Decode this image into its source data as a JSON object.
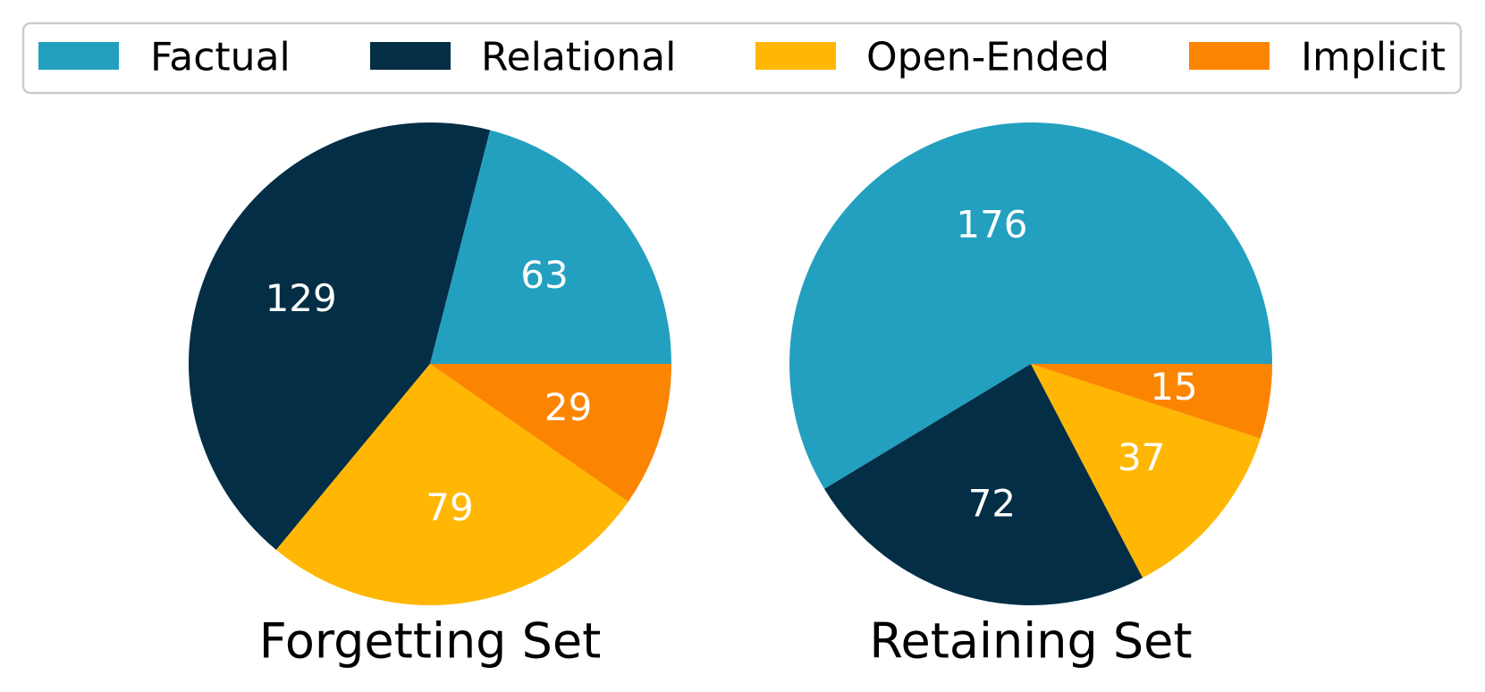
{
  "legend": {
    "placement": "top",
    "entries": [
      {
        "name": "Factual",
        "color": "#23A0BF"
      },
      {
        "name": "Relational",
        "color": "#032E46"
      },
      {
        "name": "Open-Ended",
        "color": "#FFB703"
      },
      {
        "name": "Implicit",
        "color": "#FB8500"
      }
    ]
  },
  "chart_data": [
    {
      "type": "pie",
      "title": "Forgetting Set",
      "categories": [
        "Factual",
        "Relational",
        "Open-Ended",
        "Implicit"
      ],
      "values": [
        63,
        129,
        79,
        29
      ],
      "colors": [
        "#23A0BF",
        "#032E46",
        "#FFB703",
        "#FB8500"
      ],
      "label_color": "#ffffff"
    },
    {
      "type": "pie",
      "title": "Retaining Set",
      "categories": [
        "Factual",
        "Relational",
        "Open-Ended",
        "Implicit"
      ],
      "values": [
        176,
        72,
        37,
        15
      ],
      "colors": [
        "#23A0BF",
        "#032E46",
        "#FFB703",
        "#FB8500"
      ],
      "label_color": "#ffffff"
    }
  ]
}
